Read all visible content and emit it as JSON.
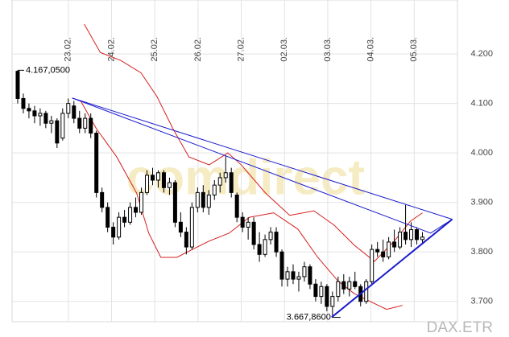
{
  "chart_data": {
    "type": "candlestick",
    "x": [
      -1.17,
      -1.04,
      -0.91,
      -0.78,
      -0.65,
      -0.52,
      -0.39,
      -0.26,
      -0.13,
      0,
      0.13,
      0.26,
      0.39,
      0.52,
      0.65,
      0.78,
      0.91,
      1.04,
      1.17,
      1.3,
      1.43,
      1.56,
      1.69,
      1.82,
      1.95,
      2.08,
      2.21,
      2.34,
      2.47,
      2.6,
      2.73,
      2.86,
      2.99,
      3.12,
      3.25,
      3.38,
      3.51,
      3.64,
      3.77,
      3.9,
      4.03,
      4.16,
      4.29,
      4.42,
      4.55,
      4.68,
      4.81,
      4.94,
      5.07,
      5.2,
      5.33,
      5.46,
      5.59,
      5.72,
      5.85,
      5.98,
      6.11,
      6.24,
      6.37,
      6.5,
      6.63,
      6.76,
      6.89,
      7.02,
      7.15,
      7.28,
      7.41,
      7.54,
      7.67,
      7.8,
      7.93,
      8.06,
      8.19
    ],
    "open": [
      4165,
      4110,
      4090,
      4085,
      4075,
      4080,
      4060,
      4065,
      4030,
      4080,
      4095,
      4070,
      4050,
      4070,
      4040,
      3920,
      3890,
      3850,
      3830,
      3870,
      3860,
      3890,
      3880,
      3920,
      3955,
      3945,
      3960,
      3930,
      3940,
      3860,
      3840,
      3810,
      3890,
      3920,
      3890,
      3915,
      3935,
      3950,
      3960,
      3915,
      3870,
      3850,
      3860,
      3815,
      3795,
      3825,
      3840,
      3800,
      3745,
      3760,
      3745,
      3750,
      3770,
      3735,
      3710,
      3730,
      3690,
      3710,
      3740,
      3725,
      3740,
      3730,
      3700,
      3740,
      3805,
      3800,
      3790,
      3820,
      3810,
      3840,
      3825,
      3845,
      3825
    ],
    "high": [
      4167.05,
      4120,
      4100,
      4095,
      4090,
      4085,
      4075,
      4070,
      4090,
      4110,
      4105,
      4085,
      4080,
      4080,
      4045,
      3930,
      3900,
      3860,
      3880,
      3885,
      3900,
      3910,
      3930,
      3965,
      3970,
      3965,
      3965,
      3950,
      3945,
      3880,
      3850,
      3900,
      3930,
      3935,
      3925,
      3945,
      3960,
      3995,
      3970,
      3920,
      3880,
      3870,
      3870,
      3840,
      3835,
      3850,
      3850,
      3805,
      3770,
      3775,
      3760,
      3780,
      3775,
      3745,
      3740,
      3735,
      3720,
      3750,
      3755,
      3750,
      3760,
      3735,
      3745,
      3815,
      3820,
      3825,
      3830,
      3845,
      3850,
      3895,
      3860,
      3850,
      3840
    ],
    "low": [
      4100,
      4080,
      4070,
      4060,
      4055,
      4050,
      4040,
      4010,
      4025,
      4070,
      4060,
      4040,
      4040,
      4030,
      3910,
      3880,
      3840,
      3815,
      3825,
      3850,
      3855,
      3870,
      3875,
      3915,
      3935,
      3930,
      3920,
      3915,
      3850,
      3830,
      3795,
      3805,
      3880,
      3880,
      3875,
      3905,
      3920,
      3940,
      3910,
      3860,
      3840,
      3825,
      3805,
      3780,
      3790,
      3815,
      3790,
      3730,
      3730,
      3735,
      3720,
      3740,
      3725,
      3700,
      3695,
      3680,
      3667.86,
      3700,
      3715,
      3710,
      3725,
      3690,
      3695,
      3735,
      3790,
      3780,
      3785,
      3800,
      3805,
      3815,
      3810,
      3815,
      3815
    ],
    "close": [
      4110,
      4090,
      4085,
      4075,
      4080,
      4060,
      4065,
      4020,
      4080,
      4100,
      4070,
      4050,
      4070,
      4040,
      3920,
      3890,
      3850,
      3830,
      3870,
      3860,
      3890,
      3880,
      3920,
      3955,
      3945,
      3960,
      3930,
      3940,
      3860,
      3840,
      3810,
      3890,
      3920,
      3890,
      3915,
      3935,
      3950,
      3960,
      3920,
      3870,
      3850,
      3860,
      3815,
      3795,
      3825,
      3840,
      3800,
      3745,
      3760,
      3745,
      3750,
      3770,
      3735,
      3710,
      3730,
      3690,
      3710,
      3740,
      3725,
      3740,
      3730,
      3700,
      3740,
      3805,
      3800,
      3790,
      3820,
      3810,
      3840,
      3825,
      3845,
      3825,
      3830
    ],
    "color": "#000000",
    "xlim": [
      -1.3,
      9.0
    ],
    "ylim": [
      3659,
      4309
    ],
    "xticks": [
      {
        "value": 0,
        "label": "23.02."
      },
      {
        "value": 1,
        "label": "24.02."
      },
      {
        "value": 2,
        "label": "25.02."
      },
      {
        "value": 3,
        "label": "26.02."
      },
      {
        "value": 4,
        "label": "27.02."
      },
      {
        "value": 5,
        "label": "02.03."
      },
      {
        "value": 6,
        "label": "03.03."
      },
      {
        "value": 7,
        "label": "04.03."
      },
      {
        "value": 8,
        "label": "05.03."
      }
    ],
    "yticks": [
      {
        "value": 3700,
        "label": "3.700"
      },
      {
        "value": 3800,
        "label": "3.800"
      },
      {
        "value": 3900,
        "label": "3.900"
      },
      {
        "value": 4000,
        "label": "4.000"
      },
      {
        "value": 4100,
        "label": "4.100"
      },
      {
        "value": 4200,
        "label": "4.200"
      }
    ],
    "grid": true,
    "annotations": [
      {
        "text": "4.167,0500",
        "x": -1.17,
        "y": 4167.05
      },
      {
        "text": "3.667,8600",
        "x": 6.11,
        "y": 3667.86
      }
    ],
    "bands": [
      {
        "color": "#d42020",
        "x": [
          0.37,
          0.74,
          1.21,
          1.68,
          2.05,
          2.42,
          2.79,
          3.26,
          3.69,
          4.0,
          4.56,
          5.12,
          5.68,
          6.15,
          6.61,
          7.08,
          7.54,
          7.91,
          8.19
        ],
        "values": [
          4260,
          4203,
          4187,
          4162,
          4114,
          4049,
          3992,
          3976,
          4000,
          3976,
          3919,
          3874,
          3883,
          3854,
          3814,
          3781,
          3822,
          3862,
          3879
        ]
      },
      {
        "color": "#d42020",
        "x": [
          0.28,
          0.65,
          1.12,
          1.58,
          1.86,
          2.14,
          2.51,
          2.89,
          3.26,
          3.72,
          4.19,
          4.75,
          5.31,
          5.77,
          6.24,
          6.61,
          6.98,
          7.36,
          7.73
        ],
        "values": [
          4106,
          4049,
          3992,
          3919,
          3838,
          3789,
          3789,
          3806,
          3822,
          3838,
          3870,
          3879,
          3846,
          3789,
          3741,
          3716,
          3700,
          3684,
          3692
        ]
      }
    ],
    "trendlines": [
      {
        "color": "#1a1acc",
        "width": 1,
        "x": [
          0.09,
          8.88
        ],
        "values": [
          4111,
          3866
        ]
      },
      {
        "color": "#1a1acc",
        "width": 1,
        "x": [
          0.09,
          8.38,
          8.88
        ],
        "values": [
          4111,
          3838,
          3866
        ]
      },
      {
        "color": "#1a1acc",
        "width": 2,
        "x": [
          6.09,
          8.88
        ],
        "values": [
          3668,
          3866
        ]
      }
    ],
    "watermark": "comdirect",
    "source": "DAX.ETR"
  }
}
